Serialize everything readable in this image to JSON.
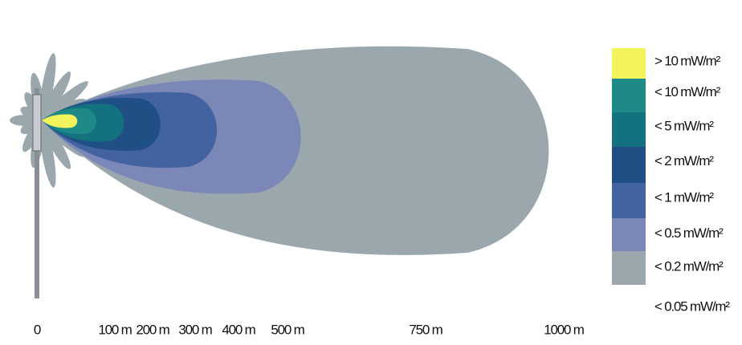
{
  "legend": [
    {
      "label": "> 10 mW/m²",
      "color": "#f3f35c"
    },
    {
      "label": "< 10 mW/m²",
      "color": "#1e8a88"
    },
    {
      "label": "<  5 mW/m²",
      "color": "#14717f"
    },
    {
      "label": "<  2 mW/m²",
      "color": "#204f86"
    },
    {
      "label": "<  1 mW/m²",
      "color": "#4263a0"
    },
    {
      "label": "< 0.5 mW/m²",
      "color": "#7b87b6"
    },
    {
      "label": "< 0.2 mW/m²",
      "color": "#9aa8ad"
    },
    {
      "label": "< 0.05 mW/m²"
    }
  ],
  "distance_labels": [
    "0",
    "100 m",
    "200 m",
    "300 m",
    "400 m",
    "500 m",
    "750 m",
    "1000 m"
  ]
}
